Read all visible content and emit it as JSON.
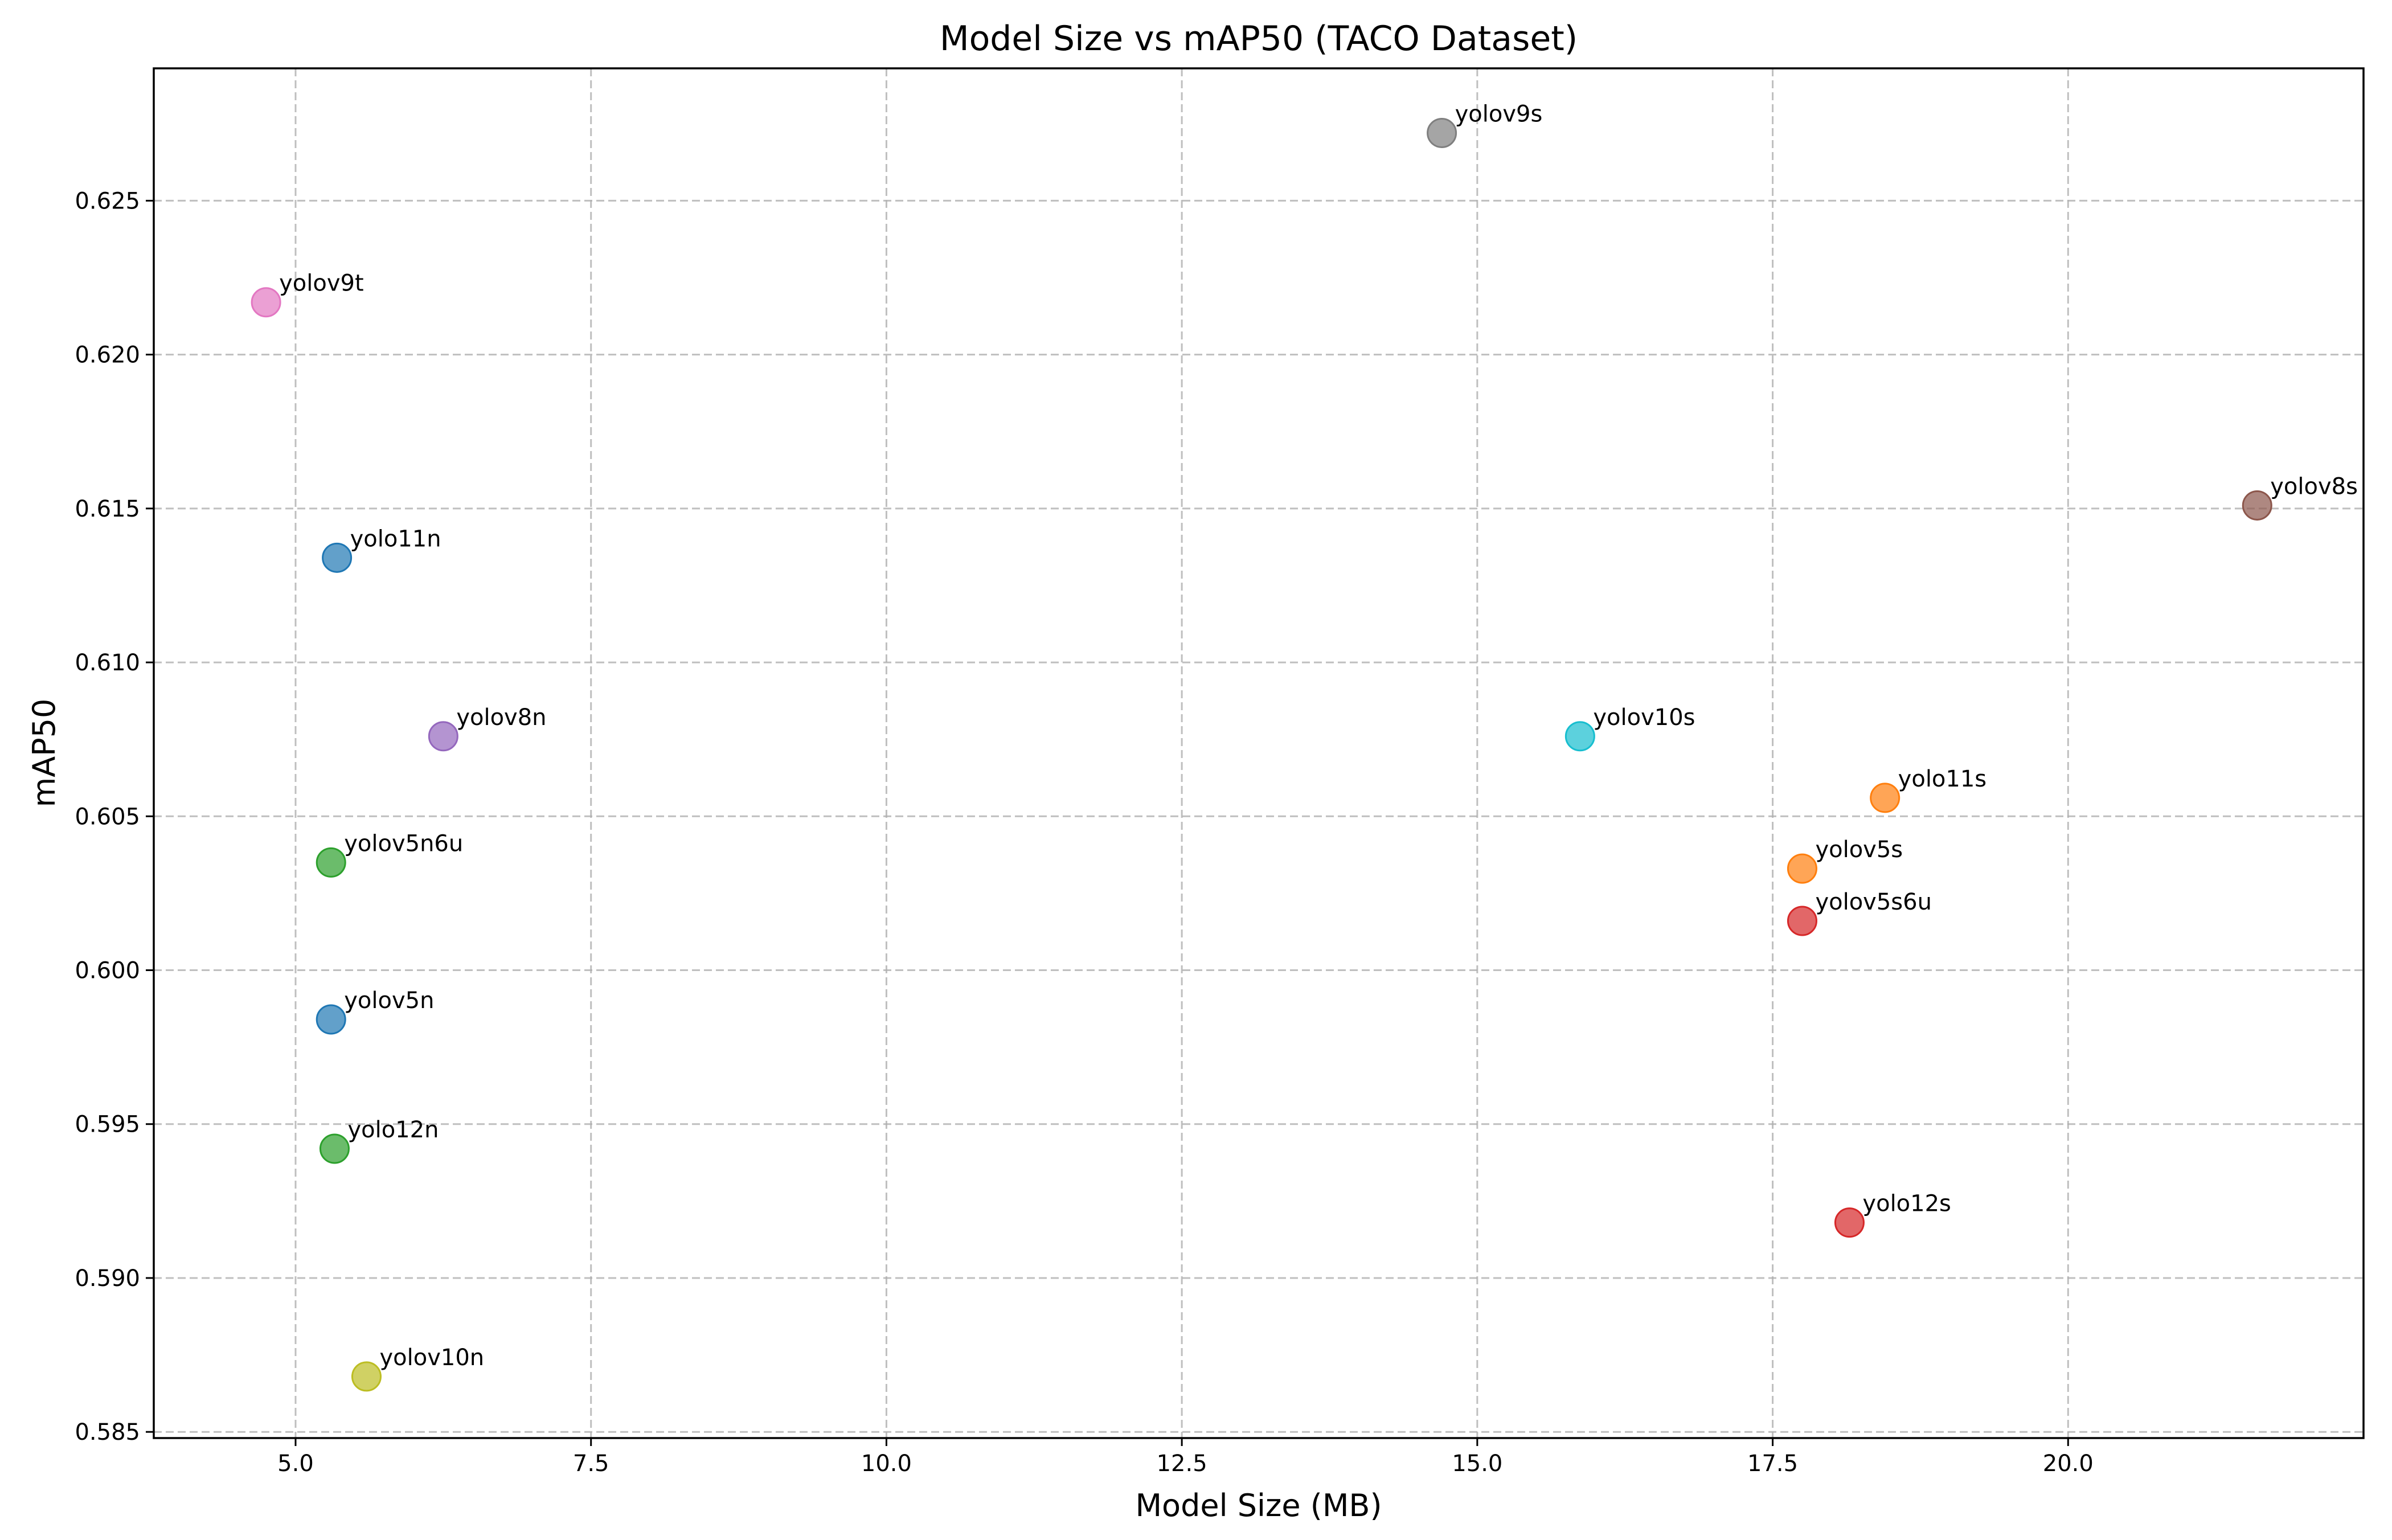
{
  "chart_data": {
    "type": "scatter",
    "title": "Model Size vs mAP50 (TACO Dataset)",
    "xlabel": "Model Size (MB)",
    "ylabel": "mAP50",
    "xlim": [
      3.8,
      22.5
    ],
    "ylim": [
      0.5848,
      0.6293
    ],
    "xticks": [
      {
        "value": 5.0,
        "label": "5.0"
      },
      {
        "value": 7.5,
        "label": "7.5"
      },
      {
        "value": 10.0,
        "label": "10.0"
      },
      {
        "value": 12.5,
        "label": "12.5"
      },
      {
        "value": 15.0,
        "label": "15.0"
      },
      {
        "value": 17.5,
        "label": "17.5"
      },
      {
        "value": 20.0,
        "label": "20.0"
      }
    ],
    "yticks": [
      {
        "value": 0.585,
        "label": "0.585"
      },
      {
        "value": 0.59,
        "label": "0.590"
      },
      {
        "value": 0.595,
        "label": "0.595"
      },
      {
        "value": 0.6,
        "label": "0.600"
      },
      {
        "value": 0.605,
        "label": "0.605"
      },
      {
        "value": 0.61,
        "label": "0.610"
      },
      {
        "value": 0.615,
        "label": "0.615"
      },
      {
        "value": 0.62,
        "label": "0.620"
      },
      {
        "value": 0.625,
        "label": "0.625"
      }
    ],
    "grid": true,
    "points": [
      {
        "label": "yolov9t",
        "x": 4.75,
        "y": 0.6217,
        "color": "#e377c2"
      },
      {
        "label": "yolo11n",
        "x": 5.35,
        "y": 0.6134,
        "color": "#1f77b4"
      },
      {
        "label": "yolov8n",
        "x": 6.25,
        "y": 0.6076,
        "color": "#9467bd"
      },
      {
        "label": "yolov5n6u",
        "x": 5.3,
        "y": 0.6035,
        "color": "#2ca02c"
      },
      {
        "label": "yolov5n",
        "x": 5.3,
        "y": 0.5984,
        "color": "#1f77b4"
      },
      {
        "label": "yolo12n",
        "x": 5.33,
        "y": 0.5942,
        "color": "#2ca02c"
      },
      {
        "label": "yolov10n",
        "x": 5.6,
        "y": 0.5868,
        "color": "#bcbd22"
      },
      {
        "label": "yolov9s",
        "x": 14.7,
        "y": 0.6272,
        "color": "#7f7f7f"
      },
      {
        "label": "yolov10s",
        "x": 15.87,
        "y": 0.6076,
        "color": "#17becf"
      },
      {
        "label": "yolo11s",
        "x": 18.45,
        "y": 0.6056,
        "color": "#ff7f0e"
      },
      {
        "label": "yolov5s",
        "x": 17.75,
        "y": 0.6033,
        "color": "#ff7f0e"
      },
      {
        "label": "yolov5s6u",
        "x": 17.75,
        "y": 0.6016,
        "color": "#d62728"
      },
      {
        "label": "yolo12s",
        "x": 18.15,
        "y": 0.5918,
        "color": "#d62728"
      },
      {
        "label": "yolov8s",
        "x": 21.6,
        "y": 0.6151,
        "color": "#8c564b"
      }
    ]
  }
}
